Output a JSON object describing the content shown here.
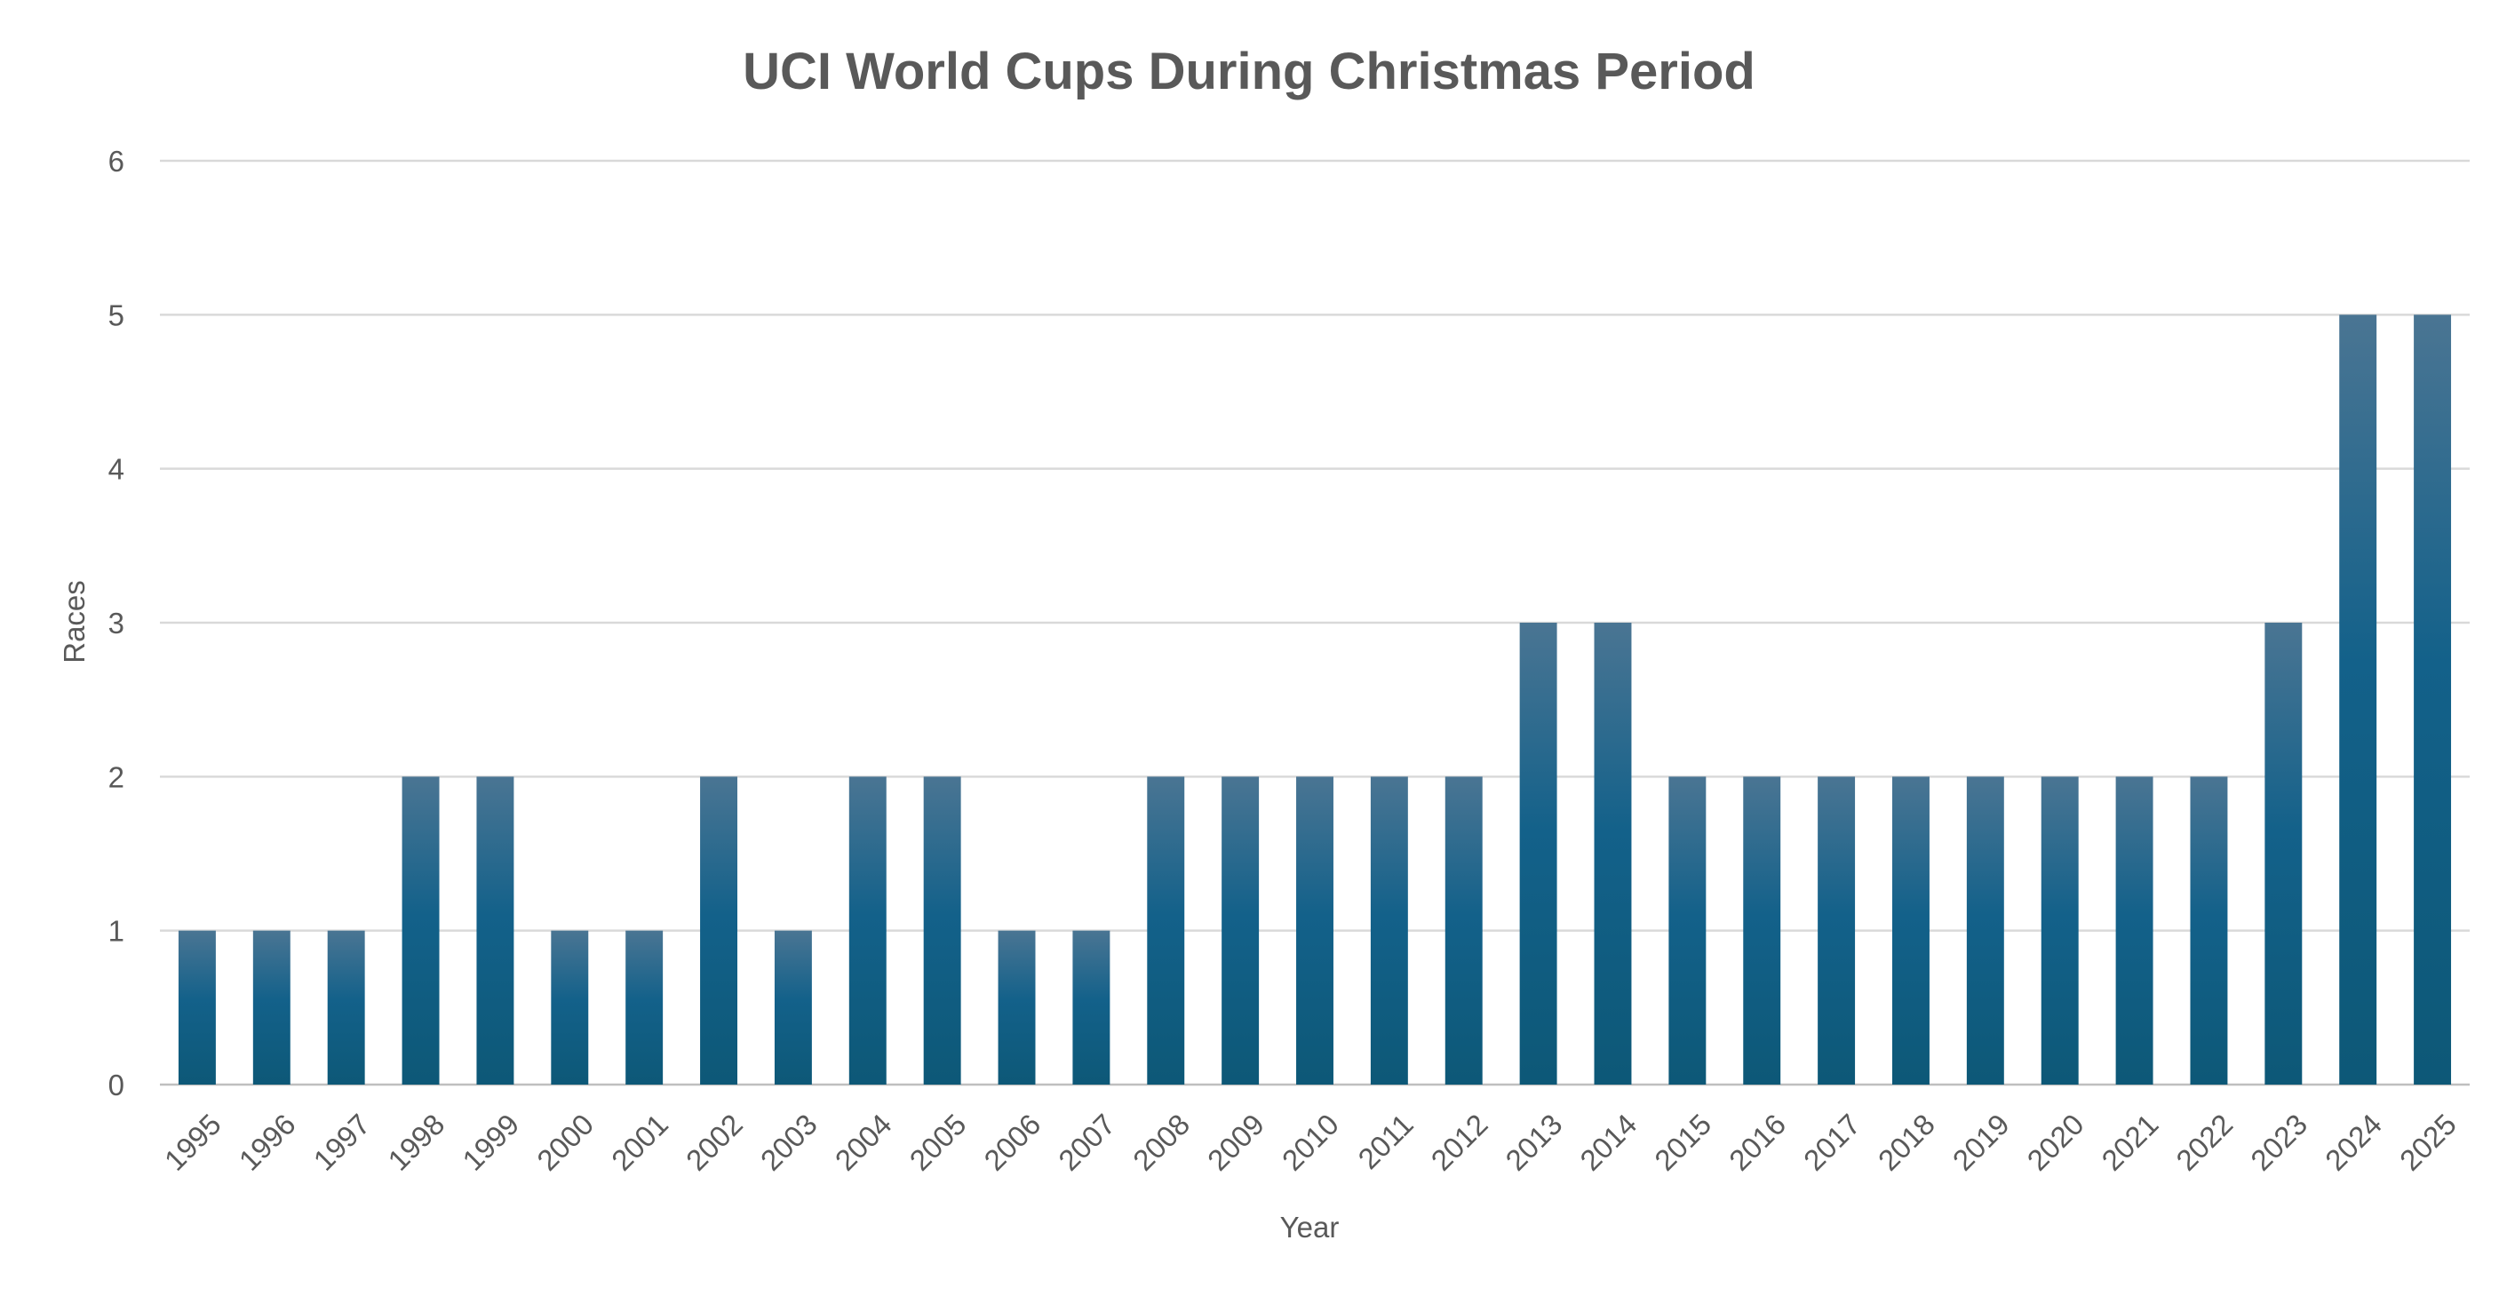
{
  "chart_data": {
    "type": "bar",
    "title": "UCI World Cups During Christmas Period",
    "xlabel": "Year",
    "ylabel": "Races",
    "categories": [
      "1995",
      "1996",
      "1997",
      "1998",
      "1999",
      "2000",
      "2001",
      "2002",
      "2003",
      "2004",
      "2005",
      "2006",
      "2007",
      "2008",
      "2009",
      "2010",
      "2011",
      "2012",
      "2013",
      "2014",
      "2015",
      "2016",
      "2017",
      "2018",
      "2019",
      "2020",
      "2021",
      "2022",
      "2023",
      "2024",
      "2025"
    ],
    "values": [
      1,
      1,
      1,
      2,
      2,
      1,
      1,
      2,
      1,
      2,
      2,
      1,
      1,
      2,
      2,
      2,
      2,
      2,
      3,
      3,
      2,
      2,
      2,
      2,
      2,
      2,
      2,
      2,
      3,
      5,
      5
    ],
    "ylim": [
      0,
      6
    ],
    "yticks": [
      "0",
      "1",
      "2",
      "3",
      "4",
      "5",
      "6"
    ],
    "grid": true,
    "legend": "none",
    "colors": {
      "bar_top": "#4a7593",
      "bar_mid": "#13618a",
      "bar_bottom": "#0d5877",
      "title": "#595959",
      "text": "#595959",
      "grid": "#d9d9d9"
    }
  }
}
